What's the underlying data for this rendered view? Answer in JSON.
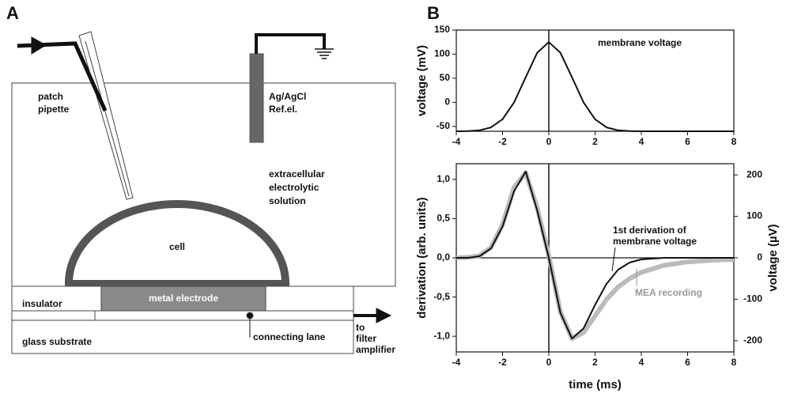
{
  "panel_labels": [
    "A",
    "B"
  ],
  "diagram": {
    "labels": [
      "patch",
      "pipette",
      "Ag/AgCl",
      "Ref.el.",
      "extracellular",
      "electrolytic",
      "solution",
      "cell",
      "metal electrode",
      "insulator",
      "glass substrate",
      "connecting lane",
      "to",
      "filter",
      "amplifier"
    ]
  },
  "chart_data": [
    {
      "type": "line",
      "y_label": "voltage (mV)",
      "annotations": [
        "membrane voltage"
      ],
      "x": [
        -4,
        -3.5,
        -3,
        -2.5,
        -2,
        -1.5,
        -1,
        -0.5,
        0,
        0.5,
        1,
        1.5,
        2,
        2.5,
        3,
        3.5,
        4,
        5,
        6,
        7,
        8
      ],
      "series": [
        {
          "color": "#111111",
          "values": [
            -60,
            -59.6,
            -58,
            -52,
            -35,
            0,
            52,
            103,
            125,
            103,
            52,
            0,
            -35,
            -52,
            -58,
            -59.6,
            -60,
            -60,
            -60,
            -60,
            -60
          ]
        }
      ],
      "xlim": [
        -4,
        8
      ],
      "xticks": [
        -4,
        -2,
        0,
        2,
        4,
        6,
        8
      ],
      "ylim": [
        -60,
        150
      ],
      "yticks": [
        -50,
        0,
        50,
        100,
        150
      ]
    },
    {
      "type": "line",
      "x_label": "time (ms)",
      "y_label": "derivation (arb. units)",
      "y2_label": "voltage (µV)",
      "annotations": [
        "1st derivation of",
        "membrane voltage",
        "MEA recording"
      ],
      "x": [
        -4,
        -3.5,
        -3,
        -2.5,
        -2,
        -1.5,
        -1,
        -0.5,
        0,
        0.5,
        1,
        1.5,
        2,
        2.5,
        3,
        3.5,
        4,
        5,
        6,
        7,
        8
      ],
      "series": [
        {
          "color": "#bbbbbb",
          "axis": "y2",
          "values": [
            0,
            1,
            5,
            25,
            80,
            170,
            205,
            120,
            5,
            -130,
            -195,
            -180,
            -140,
            -100,
            -70,
            -50,
            -35,
            -18,
            -10,
            -6,
            -4
          ]
        },
        {
          "color": "#111111",
          "values": [
            0,
            0,
            0.02,
            0.12,
            0.4,
            0.85,
            1.1,
            0.6,
            0,
            -0.7,
            -1.03,
            -0.9,
            -0.6,
            -0.33,
            -0.15,
            -0.06,
            -0.02,
            0,
            0,
            0,
            0
          ]
        }
      ],
      "xlim": [
        -4,
        8
      ],
      "xticks": [
        -4,
        -2,
        0,
        2,
        4,
        6,
        8
      ],
      "ylim": [
        -1.2,
        1.2
      ],
      "yticks": [
        {
          "value": -1,
          "label": "-1,0"
        },
        {
          "value": -0.5,
          "label": "-0,5"
        },
        {
          "value": 0,
          "label": "0,0"
        },
        {
          "value": 0.5,
          "label": "0,5"
        },
        {
          "value": 1,
          "label": "1,0"
        }
      ],
      "y2lim": [
        -227,
        227
      ],
      "y2ticks": [
        -200,
        -100,
        0,
        100,
        200
      ]
    }
  ]
}
